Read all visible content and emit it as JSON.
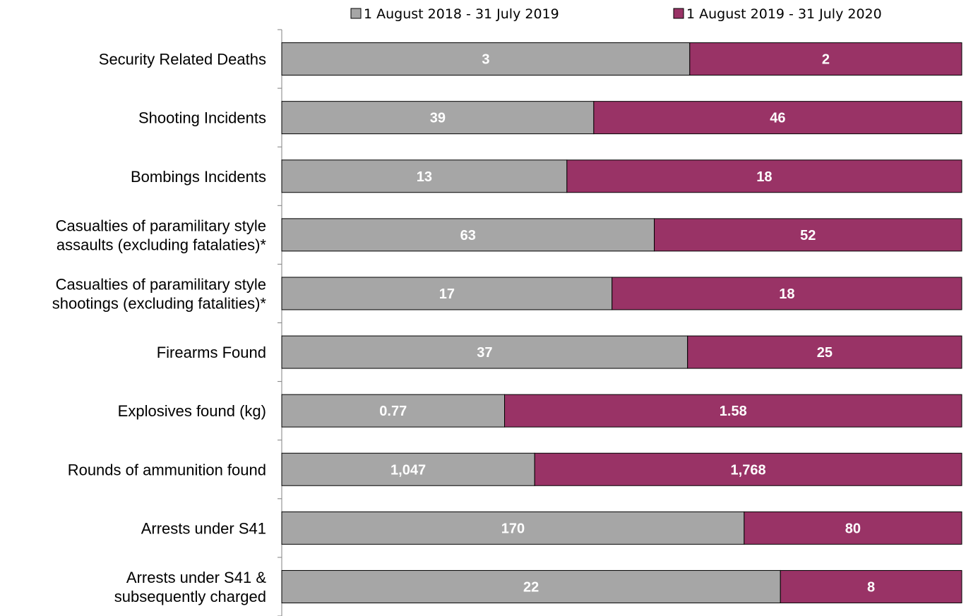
{
  "chart_data": {
    "type": "bar",
    "orientation": "horizontal",
    "stacked": "100%",
    "title": "",
    "xlabel": "",
    "ylabel": "",
    "grid": false,
    "legend_position": "top",
    "categories": [
      [
        "Security Related Deaths"
      ],
      [
        "Shooting Incidents"
      ],
      [
        "Bombings Incidents"
      ],
      [
        "Casualties of paramilitary style",
        "assaults (excluding fatalaties)*"
      ],
      [
        "Casualties of paramilitary style",
        "shootings (excluding fatalities)*"
      ],
      [
        "Firearms Found"
      ],
      [
        "Explosives found (kg)"
      ],
      [
        "Rounds of ammunition found"
      ],
      [
        "Arrests under S41"
      ],
      [
        "Arrests under S41 &",
        "subsequently charged"
      ]
    ],
    "series": [
      {
        "name": "1 August 2018 - 31 July 2019",
        "color": "#a6a6a6",
        "values": [
          3,
          39,
          13,
          63,
          17,
          37,
          0.77,
          1047,
          170,
          22
        ],
        "labels": [
          "3",
          "39",
          "13",
          "63",
          "17",
          "37",
          "0.77",
          "1,047",
          "170",
          "22"
        ]
      },
      {
        "name": "1 August 2019 - 31 July 2020",
        "color": "#993366",
        "values": [
          2,
          46,
          18,
          52,
          18,
          25,
          1.58,
          1768,
          80,
          8
        ],
        "labels": [
          "2",
          "46",
          "18",
          "52",
          "18",
          "25",
          "1.58",
          "1,768",
          "80",
          "8"
        ]
      }
    ]
  }
}
